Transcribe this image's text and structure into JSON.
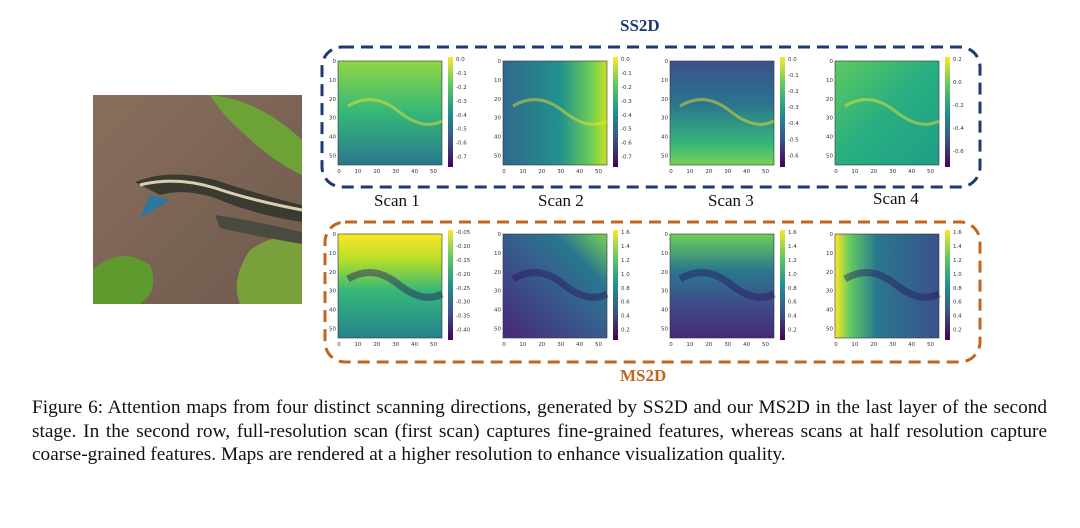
{
  "photo": {
    "icon": "snake-photo-icon"
  },
  "groups": {
    "ss2d": {
      "title": "SS2D",
      "color": "#1f3a73"
    },
    "ms2d": {
      "title": "MS2D",
      "color": "#c0661f"
    }
  },
  "scan_labels": [
    "Scan 1",
    "Scan 2",
    "Scan 3",
    "Scan 4"
  ],
  "axis_ticks": {
    "x": [
      "0",
      "10",
      "20",
      "30",
      "40",
      "50"
    ],
    "y": [
      "0",
      "10",
      "20",
      "30",
      "40",
      "50"
    ]
  },
  "colorbars": {
    "ss2d": [
      [
        "0.0",
        "-0.1",
        "-0.2",
        "-0.3",
        "-0.4",
        "-0.5",
        "-0.6",
        "-0.7"
      ],
      [
        "0.0",
        "-0.1",
        "-0.2",
        "-0.3",
        "-0.4",
        "-0.5",
        "-0.6",
        "-0.7"
      ],
      [
        "0.0",
        "-0.1",
        "-0.2",
        "-0.3",
        "-0.4",
        "-0.5",
        "-0.6"
      ],
      [
        "0.2",
        "0.0",
        "-0.2",
        "-0.4",
        "-0.6"
      ]
    ],
    "ms2d": [
      [
        "-0.05",
        "-0.10",
        "-0.15",
        "-0.20",
        "-0.25",
        "-0.30",
        "-0.35",
        "-0.40"
      ],
      [
        "1.6",
        "1.4",
        "1.2",
        "1.0",
        "0.8",
        "0.6",
        "0.4",
        "0.2"
      ],
      [
        "1.6",
        "1.4",
        "1.2",
        "1.0",
        "0.8",
        "0.6",
        "0.4",
        "0.2"
      ],
      [
        "1.6",
        "1.4",
        "1.2",
        "1.0",
        "0.8",
        "0.6",
        "0.4",
        "0.2"
      ]
    ]
  },
  "caption": "Figure 6: Attention maps from four distinct scanning directions, generated by SS2D and our MS2D in the last layer of the second stage. In the second row, full-resolution scan (first scan) captures fine-grained features, whereas scans at half resolution capture coarse-grained features. Maps are rendered at a higher resolution to enhance visualization quality."
}
